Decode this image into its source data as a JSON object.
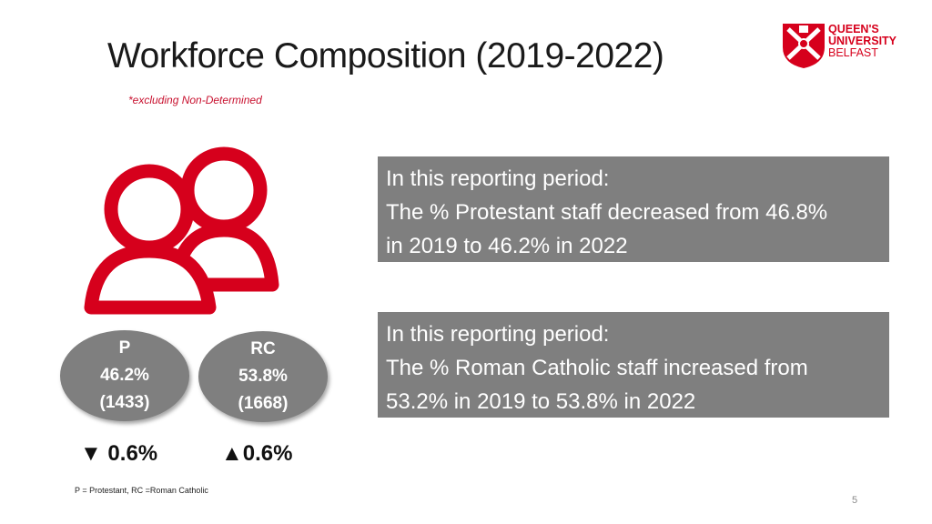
{
  "slide": {
    "title": "Workforce Composition (2019-2022)",
    "subtitle": "*excluding Non-Determined",
    "page_number": "5",
    "footnote": "P = Protestant, RC =Roman Catholic"
  },
  "logo": {
    "line1": "QUEEN'S",
    "line2": "UNIVERSITY",
    "line3": "BELFAST",
    "color": "#d6001c"
  },
  "groups": {
    "protestant": {
      "label": "P",
      "percent": "46.2%",
      "count": "(1433)",
      "change": "▼ 0.6%"
    },
    "roman_catholic": {
      "label": "RC",
      "percent": "53.8%",
      "count": "(1668)",
      "change": "▲0.6%"
    }
  },
  "info_boxes": [
    {
      "line1": "In this reporting period:",
      "line2": "The % Protestant staff decreased from 46.8%",
      "line3": "in 2019 to 46.2% in 2022"
    },
    {
      "line1": "In this reporting period:",
      "line2": "The % Roman Catholic staff increased from",
      "line3": "53.2% in 2019 to 53.8% in 2022"
    }
  ],
  "icons": {
    "people": "people-icon",
    "logo": "crest-icon"
  },
  "colors": {
    "accent_red": "#d6001c",
    "box_gray": "#7f7f7f"
  }
}
